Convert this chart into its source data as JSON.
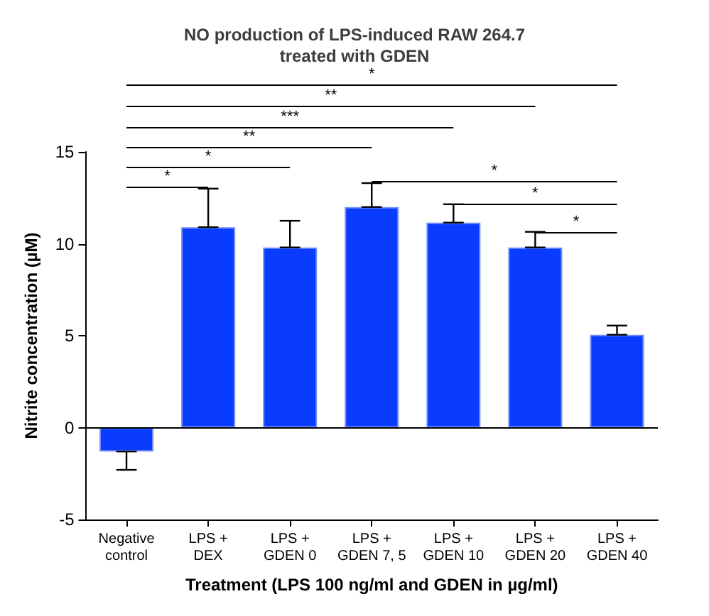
{
  "chart_data": {
    "type": "bar",
    "title": "NO production of LPS-induced RAW 264.7\ntreated with GDEN",
    "xlabel": "Treatment (LPS 100 ng/ml and GDEN in µg/ml)",
    "ylabel": "Nitrite concentration (µM)",
    "categories": [
      "Negative\ncontrol",
      "LPS +\nDEX",
      "LPS +\nGDEN 0",
      "LPS +\nGDEN 7, 5",
      "LPS +\nGDEN 10",
      "LPS +\nGDEN 20",
      "LPS +\nGDEN 40"
    ],
    "values": [
      -1.3,
      10.9,
      9.8,
      12.0,
      11.15,
      9.8,
      5.05
    ],
    "errors": [
      [
        -2.3,
        -1.3
      ],
      [
        10.9,
        13.0
      ],
      [
        9.8,
        11.25
      ],
      [
        12.0,
        13.3
      ],
      [
        11.15,
        12.15
      ],
      [
        9.8,
        10.65
      ],
      [
        5.05,
        5.55
      ]
    ],
    "color": "#0a3cff",
    "ylim": [
      -5,
      15
    ],
    "yticks": [
      -5,
      0,
      5,
      10,
      15
    ],
    "grid": false,
    "ref_lines": [
      {
        "axis": "y",
        "value": 0,
        "color": "#000000"
      }
    ],
    "annotations": [
      "*",
      "**",
      "***",
      "**",
      "*",
      "*",
      "*",
      "*",
      "*"
    ]
  }
}
